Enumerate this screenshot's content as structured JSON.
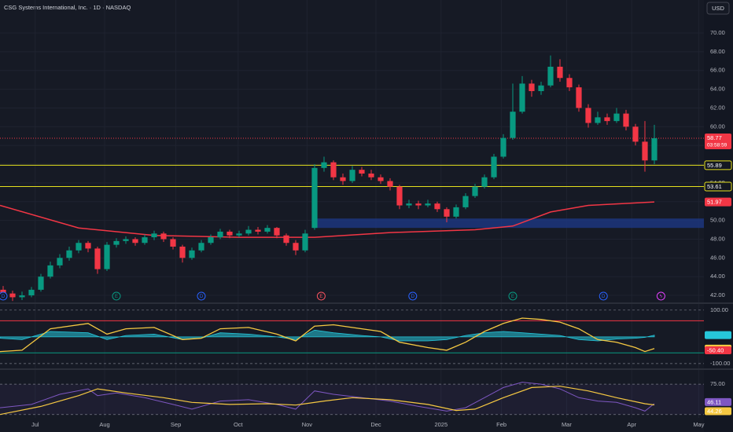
{
  "chart_data": {
    "type": "candlestick",
    "title": "CSG Systems International, Inc. · 1D · NASDAQ",
    "currency": "USD",
    "up_color": "#089981",
    "down_color": "#f23645",
    "grid": true,
    "xlim": [
      -0.333,
      74.25
    ],
    "xticks": [
      {
        "value": 3.4,
        "label": "Jul"
      },
      {
        "value": 10.75,
        "label": "Aug"
      },
      {
        "value": 18.3,
        "label": "Sep"
      },
      {
        "value": 24.9,
        "label": "Oct"
      },
      {
        "value": 32.2,
        "label": "Nov"
      },
      {
        "value": 39.5,
        "label": "Dec"
      },
      {
        "value": 46.4,
        "label": "2025"
      },
      {
        "value": 52.8,
        "label": "Feb"
      },
      {
        "value": 59.7,
        "label": "Mar"
      },
      {
        "value": 66.6,
        "label": "Apr"
      },
      {
        "value": 73.7,
        "label": "May"
      }
    ],
    "ylim": [
      41.25,
      73.52
    ],
    "yticks": [
      {
        "value": 42,
        "label": "42.00"
      },
      {
        "value": 44,
        "label": "44.00"
      },
      {
        "value": 46,
        "label": "46.00"
      },
      {
        "value": 48,
        "label": "48.00"
      },
      {
        "value": 50,
        "label": "50.00"
      },
      {
        "value": 52,
        "label": "52.00"
      },
      {
        "value": 54,
        "label": "54.00"
      },
      {
        "value": 56,
        "label": "56.00"
      },
      {
        "value": 58,
        "label": "58.00"
      },
      {
        "value": 60,
        "label": "60.00"
      },
      {
        "value": 62,
        "label": "62.00"
      },
      {
        "value": 64,
        "label": "64.00"
      },
      {
        "value": 66,
        "label": "66.00"
      },
      {
        "value": 68,
        "label": "68.00"
      },
      {
        "value": 70,
        "label": "70.00"
      }
    ],
    "candles": [
      [
        42.6,
        43.0,
        41.8,
        42.2
      ],
      [
        42.2,
        42.5,
        41.4,
        41.8
      ],
      [
        41.8,
        42.4,
        41.5,
        42.0
      ],
      [
        42.0,
        42.9,
        41.8,
        42.6
      ],
      [
        42.6,
        44.3,
        42.4,
        44.0
      ],
      [
        44.0,
        45.6,
        43.8,
        45.2
      ],
      [
        45.2,
        46.4,
        44.9,
        46.0
      ],
      [
        46.0,
        47.2,
        45.7,
        46.8
      ],
      [
        46.8,
        47.9,
        46.5,
        47.6
      ],
      [
        47.6,
        47.8,
        46.6,
        47.0
      ],
      [
        47.0,
        47.2,
        44.3,
        44.8
      ],
      [
        44.8,
        47.7,
        44.6,
        47.4
      ],
      [
        47.4,
        48.1,
        47.1,
        47.8
      ],
      [
        47.8,
        48.3,
        47.5,
        48.0
      ],
      [
        48.0,
        48.2,
        47.3,
        47.6
      ],
      [
        47.6,
        48.5,
        47.4,
        48.2
      ],
      [
        48.2,
        48.9,
        47.9,
        48.6
      ],
      [
        48.6,
        48.8,
        47.7,
        48.0
      ],
      [
        48.0,
        48.2,
        46.9,
        47.2
      ],
      [
        47.2,
        47.4,
        45.5,
        46.0
      ],
      [
        46.0,
        47.1,
        45.8,
        46.8
      ],
      [
        46.8,
        47.9,
        46.6,
        47.6
      ],
      [
        47.6,
        48.5,
        47.4,
        48.2
      ],
      [
        48.2,
        49.1,
        48.0,
        48.8
      ],
      [
        48.8,
        49.0,
        48.1,
        48.4
      ],
      [
        48.4,
        48.9,
        48.2,
        48.6
      ],
      [
        48.6,
        49.4,
        48.4,
        49.0
      ],
      [
        49.0,
        49.3,
        48.5,
        48.8
      ],
      [
        48.8,
        49.5,
        48.6,
        49.2
      ],
      [
        49.2,
        49.3,
        48.1,
        48.4
      ],
      [
        48.4,
        48.6,
        47.3,
        47.6
      ],
      [
        47.6,
        47.9,
        46.3,
        46.8
      ],
      [
        46.8,
        49.0,
        46.6,
        48.6
      ],
      [
        49.2,
        56.0,
        49.0,
        55.6
      ],
      [
        55.6,
        56.8,
        55.2,
        56.2
      ],
      [
        56.2,
        56.4,
        54.3,
        54.6
      ],
      [
        54.6,
        55.0,
        53.8,
        54.2
      ],
      [
        54.2,
        55.8,
        54.0,
        55.4
      ],
      [
        55.4,
        55.7,
        54.7,
        55.0
      ],
      [
        55.0,
        55.4,
        54.3,
        54.6
      ],
      [
        54.6,
        54.9,
        53.9,
        54.2
      ],
      [
        54.2,
        54.5,
        53.2,
        53.6
      ],
      [
        53.6,
        53.8,
        51.2,
        51.6
      ],
      [
        51.6,
        52.2,
        51.3,
        51.8
      ],
      [
        51.8,
        52.1,
        51.2,
        51.6
      ],
      [
        51.6,
        52.2,
        51.4,
        51.8
      ],
      [
        51.8,
        52.0,
        50.9,
        51.2
      ],
      [
        51.2,
        51.4,
        49.8,
        50.4
      ],
      [
        50.4,
        51.7,
        50.2,
        51.4
      ],
      [
        51.4,
        52.9,
        51.2,
        52.6
      ],
      [
        52.6,
        53.9,
        52.4,
        53.6
      ],
      [
        53.6,
        54.9,
        53.4,
        54.6
      ],
      [
        54.6,
        57.1,
        54.4,
        56.8
      ],
      [
        56.8,
        59.2,
        56.6,
        58.8
      ],
      [
        58.8,
        64.6,
        58.6,
        61.6
      ],
      [
        61.6,
        65.4,
        61.4,
        64.6
      ],
      [
        64.6,
        65.0,
        63.2,
        63.8
      ],
      [
        63.8,
        64.8,
        63.4,
        64.4
      ],
      [
        64.4,
        67.6,
        64.2,
        66.4
      ],
      [
        66.4,
        67.2,
        64.8,
        65.2
      ],
      [
        65.2,
        65.6,
        63.8,
        64.2
      ],
      [
        64.2,
        64.5,
        61.6,
        62.0
      ],
      [
        62.0,
        62.4,
        59.9,
        60.4
      ],
      [
        60.4,
        61.6,
        60.2,
        61.0
      ],
      [
        61.0,
        61.4,
        60.2,
        60.6
      ],
      [
        60.6,
        62.0,
        60.4,
        61.4
      ],
      [
        61.4,
        61.8,
        59.6,
        60.0
      ],
      [
        60.0,
        60.3,
        58.0,
        58.4
      ],
      [
        58.4,
        60.6,
        55.2,
        56.4
      ],
      [
        56.4,
        60.2,
        56.0,
        58.77
      ]
    ],
    "moving_average": {
      "color": "#f23645",
      "x": [
        -0.333,
        8,
        16,
        25,
        33,
        41,
        50,
        54,
        58,
        62,
        69
      ],
      "values": [
        51.6,
        49.2,
        48.4,
        48.2,
        48.2,
        48.7,
        49.0,
        49.4,
        50.9,
        51.6,
        51.97
      ]
    },
    "lines": [
      {
        "value": 55.89,
        "color": "#e5e01e"
      },
      {
        "value": 53.61,
        "color": "#e5e01e"
      }
    ],
    "price": {
      "value": 58.77,
      "countdown": "03:58:59",
      "color": "#f23645"
    },
    "zone": {
      "x": [
        32.8,
        74.25
      ],
      "range": [
        49.2,
        50.2
      ],
      "color": "#1e3a8a"
    },
    "events": [
      {
        "x": 0,
        "label": "D",
        "color": "#2962ff"
      },
      {
        "x": 12,
        "label": "E",
        "color": "#089981"
      },
      {
        "x": 21,
        "label": "D",
        "color": "#2962ff"
      },
      {
        "x": 33.7,
        "label": "E",
        "color": "#f7525f"
      },
      {
        "x": 43.4,
        "label": "D",
        "color": "#2962ff"
      },
      {
        "x": 54,
        "label": "E",
        "color": "#089981"
      },
      {
        "x": 63.6,
        "label": "D",
        "color": "#2962ff"
      },
      {
        "x": 69.7,
        "label": "ϟ",
        "color": "#e040fb"
      }
    ],
    "oscillator": {
      "ylim": [
        -115,
        120
      ],
      "yticks": [
        {
          "value": 100,
          "label": "100.00"
        },
        {
          "value": -100,
          "label": "-100.00"
        }
      ],
      "levels": [
        {
          "value": 60,
          "color": "#f23645"
        },
        {
          "value": -60,
          "color": "#089981"
        }
      ],
      "x": [
        -0.333,
        2,
        5,
        9,
        11,
        13,
        16,
        19,
        21,
        23,
        26,
        29,
        31,
        33,
        35,
        38,
        40,
        42,
        45,
        47,
        49,
        51,
        53,
        55,
        57,
        59,
        61,
        63,
        65,
        67,
        68,
        69
      ],
      "line": {
        "color": "#f5c842",
        "values": [
          -55,
          -50,
          30,
          50,
          10,
          30,
          35,
          -10,
          -5,
          30,
          35,
          10,
          -15,
          40,
          45,
          30,
          20,
          -20,
          -40,
          -50,
          -20,
          20,
          50,
          70,
          65,
          55,
          30,
          -10,
          -20,
          -40,
          -55,
          -44.03
        ]
      },
      "histogram": {
        "color": "#26c6da",
        "values": [
          -5,
          -10,
          20,
          15,
          -10,
          5,
          10,
          -10,
          -5,
          15,
          10,
          0,
          -10,
          25,
          15,
          5,
          0,
          -15,
          -15,
          -10,
          5,
          15,
          20,
          15,
          10,
          5,
          -10,
          -15,
          -8,
          -5,
          -2,
          6.37
        ]
      },
      "tags": [
        {
          "value": 6.37,
          "color": "#26c6da"
        },
        {
          "value": -44.03,
          "color": "#f5c842"
        },
        {
          "value": -50.4,
          "label": "-50.40",
          "color": "#f23645"
        }
      ]
    },
    "rsi": {
      "ylim": [
        25,
        95
      ],
      "yticks": [
        {
          "value": 75,
          "label": "75.00"
        }
      ],
      "band": [
        30,
        75
      ],
      "line": {
        "color": "#7e57c2",
        "x": [
          -0.333,
          3,
          6,
          9,
          10,
          12,
          15,
          18,
          20,
          23,
          26,
          29,
          31,
          33,
          35,
          38,
          41,
          44,
          47,
          49,
          51,
          53,
          55,
          57,
          59,
          61,
          63,
          65,
          67,
          68,
          69
        ],
        "values": [
          40,
          45,
          60,
          68,
          58,
          62,
          55,
          45,
          38,
          50,
          52,
          45,
          38,
          65,
          60,
          55,
          50,
          42,
          35,
          40,
          55,
          70,
          78,
          75,
          68,
          55,
          50,
          48,
          40,
          35,
          46.11
        ]
      },
      "ma": {
        "color": "#f5c842",
        "x": [
          -0.333,
          4,
          8,
          10,
          13,
          17,
          20,
          24,
          28,
          31,
          34,
          37,
          41,
          45,
          48,
          50,
          53,
          56,
          59,
          62,
          65,
          68,
          69
        ],
        "values": [
          30,
          42,
          58,
          68,
          62,
          55,
          48,
          45,
          46,
          44,
          50,
          55,
          52,
          45,
          36,
          38,
          55,
          70,
          72,
          65,
          55,
          46,
          44.26
        ]
      }
    }
  }
}
